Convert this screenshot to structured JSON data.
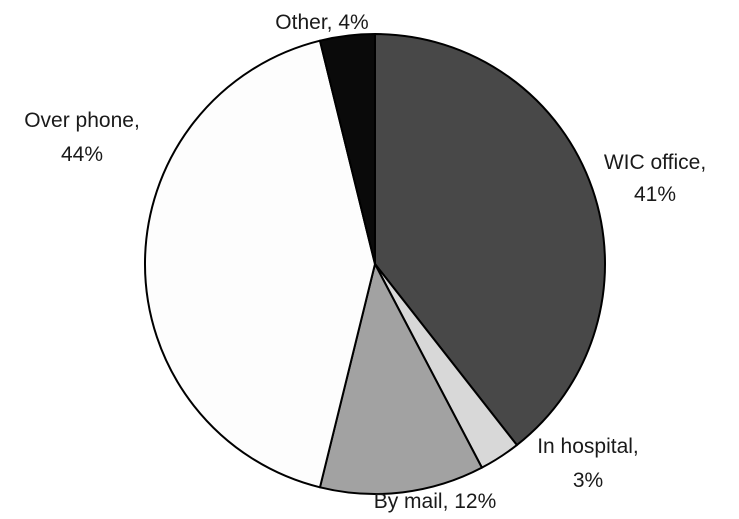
{
  "chart_data": {
    "type": "pie",
    "start_angle_deg": 0,
    "direction": "clockwise",
    "slices": [
      {
        "label": "WIC office,",
        "pct_text": "41%",
        "value": 41,
        "color": "#484848"
      },
      {
        "label": "In hospital,",
        "pct_text": "3%",
        "value": 3,
        "color": "#d8d8d8"
      },
      {
        "label": "By mail, 12%",
        "pct_text": "",
        "value": 12,
        "color": "#a2a2a2"
      },
      {
        "label": "Over phone,",
        "pct_text": "44%",
        "value": 44,
        "color": "#fdfdfd"
      },
      {
        "label": "Other, 4%",
        "pct_text": "",
        "value": 4,
        "color": "#0a0a0a"
      }
    ]
  }
}
